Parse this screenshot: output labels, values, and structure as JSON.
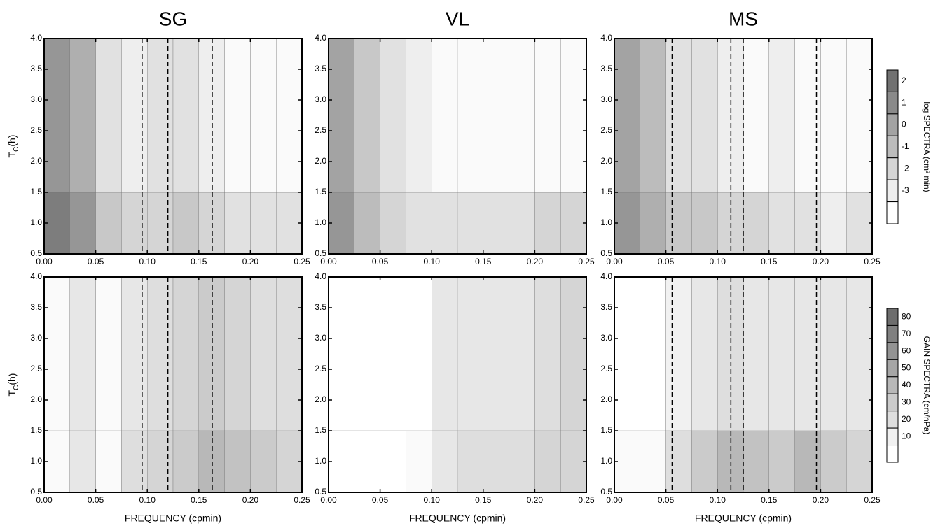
{
  "chart_data": [
    {
      "type": "contour",
      "title": "SG",
      "xlim": [
        0,
        0.25
      ],
      "ylim": [
        0.5,
        4
      ],
      "xticks": [
        {
          "value": 0,
          "label": "0.00"
        },
        {
          "value": 0.05,
          "label": "0.05"
        },
        {
          "value": 0.1,
          "label": "0.10"
        },
        {
          "value": 0.15,
          "label": "0.15"
        },
        {
          "value": 0.2,
          "label": "0.20"
        },
        {
          "value": 0.25,
          "label": "0.25"
        }
      ],
      "yticks": [
        0.5,
        {
          "value": 1,
          "label": "1.0"
        },
        1.5,
        {
          "value": 2,
          "label": "2.0"
        },
        2.5,
        {
          "value": 3,
          "label": "3.0"
        },
        3.5,
        {
          "value": 4,
          "label": "4.0"
        }
      ],
      "ylabel": {
        "text": "T",
        "sub": "C",
        "suffix": "(h)"
      },
      "dashed_lines": [
        0.095,
        0.12,
        0.163
      ],
      "x_bins": [
        0,
        0.025,
        0.05,
        0.075,
        0.1,
        0.125,
        0.15,
        0.175,
        0.2,
        0.225,
        0.25
      ],
      "y_bins": [
        0.5,
        1.5,
        4
      ],
      "values": [
        [
          1.5,
          0.5,
          -1.5,
          -2,
          -2,
          -1.5,
          -2,
          -2.5,
          -2.5,
          -2.5
        ],
        [
          0.5,
          -0.5,
          -2.5,
          -3,
          -2.5,
          -2.5,
          -3,
          -3.5,
          -3.5,
          -3.5
        ]
      ],
      "vlim": [
        -3.5,
        2.5
      ]
    },
    {
      "type": "contour",
      "title": "VL",
      "xlim": [
        0,
        0.25
      ],
      "ylim": [
        0.5,
        4
      ],
      "xticks": [
        {
          "value": 0,
          "label": "0.00"
        },
        {
          "value": 0.05,
          "label": "0.05"
        },
        {
          "value": 0.1,
          "label": "0.10"
        },
        {
          "value": 0.15,
          "label": "0.15"
        },
        {
          "value": 0.2,
          "label": "0.20"
        },
        {
          "value": 0.25,
          "label": "0.25"
        }
      ],
      "yticks": [
        0.5,
        {
          "value": 1,
          "label": "1.0"
        },
        1.5,
        {
          "value": 2,
          "label": "2.0"
        },
        2.5,
        {
          "value": 3,
          "label": "3.0"
        },
        3.5,
        {
          "value": 4,
          "label": "4.0"
        }
      ],
      "x_bins": [
        0,
        0.025,
        0.05,
        0.075,
        0.1,
        0.125,
        0.15,
        0.175,
        0.2,
        0.225,
        0.25
      ],
      "y_bins": [
        0.5,
        1.5,
        4
      ],
      "values": [
        [
          0.5,
          -1,
          -2,
          -2.5,
          -2.5,
          -2.5,
          -2.5,
          -2.5,
          -2,
          -2
        ],
        [
          0,
          -1.5,
          -2.5,
          -3,
          -3.5,
          -3.5,
          -3.5,
          -3.5,
          -3.5,
          -3.5
        ]
      ],
      "vlim": [
        -3.5,
        2.5
      ]
    },
    {
      "type": "contour",
      "title": "MS",
      "xlim": [
        0,
        0.25
      ],
      "ylim": [
        0.5,
        4
      ],
      "xticks": [
        {
          "value": 0,
          "label": "0.00"
        },
        {
          "value": 0.05,
          "label": "0.05"
        },
        {
          "value": 0.1,
          "label": "0.10"
        },
        {
          "value": 0.15,
          "label": "0.15"
        },
        {
          "value": 0.2,
          "label": "0.20"
        },
        {
          "value": 0.25,
          "label": "0.25"
        }
      ],
      "yticks": [
        0.5,
        {
          "value": 1,
          "label": "1.0"
        },
        1.5,
        {
          "value": 2,
          "label": "2.0"
        },
        2.5,
        {
          "value": 3,
          "label": "3.0"
        },
        3.5,
        {
          "value": 4,
          "label": "4.0"
        }
      ],
      "dashed_lines": [
        0.056,
        0.113,
        0.125,
        0.196
      ],
      "x_bins": [
        0,
        0.025,
        0.05,
        0.075,
        0.1,
        0.125,
        0.15,
        0.175,
        0.2,
        0.225,
        0.25
      ],
      "y_bins": [
        0.5,
        1.5,
        4
      ],
      "values": [
        [
          0.5,
          -0.5,
          -1.5,
          -1.5,
          -2,
          -2,
          -2.5,
          -2.5,
          -3,
          -2.5
        ],
        [
          0,
          -1,
          -2.5,
          -2.5,
          -3,
          -3.5,
          -3,
          -3.5,
          -3.5,
          -3.5
        ]
      ],
      "vlim": [
        -3.5,
        2.5
      ],
      "colorbar": {
        "label": "log SPECTRA (cm² min)",
        "levels": [
          2,
          1,
          0,
          -1,
          -2,
          -3
        ]
      }
    },
    {
      "type": "contour",
      "xlim": [
        0,
        0.25
      ],
      "ylim": [
        0.5,
        4
      ],
      "xticks": [
        {
          "value": 0,
          "label": "0.00"
        },
        {
          "value": 0.05,
          "label": "0.05"
        },
        {
          "value": 0.1,
          "label": "0.10"
        },
        {
          "value": 0.15,
          "label": "0.15"
        },
        {
          "value": 0.2,
          "label": "0.20"
        },
        {
          "value": 0.25,
          "label": "0.25"
        }
      ],
      "yticks": [
        0.5,
        {
          "value": 1,
          "label": "1.0"
        },
        1.5,
        {
          "value": 2,
          "label": "2.0"
        },
        2.5,
        {
          "value": 3,
          "label": "3.0"
        },
        3.5,
        {
          "value": 4,
          "label": "4.0"
        }
      ],
      "xlabel": "FREQUENCY (cpmin)",
      "ylabel": {
        "text": "T",
        "sub": "C",
        "suffix": "(h)"
      },
      "dashed_lines": [
        0.095,
        0.12,
        0.163
      ],
      "x_bins": [
        0,
        0.025,
        0.05,
        0.075,
        0.1,
        0.125,
        0.15,
        0.175,
        0.2,
        0.225,
        0.25
      ],
      "y_bins": [
        0.5,
        1.5,
        4
      ],
      "values": [
        [
          5,
          15,
          5,
          20,
          25,
          30,
          40,
          35,
          30,
          25
        ],
        [
          5,
          15,
          5,
          15,
          20,
          25,
          30,
          25,
          20,
          20
        ]
      ],
      "vlim": [
        5,
        85
      ]
    },
    {
      "type": "contour",
      "xlim": [
        0,
        0.25
      ],
      "ylim": [
        0.5,
        4
      ],
      "xticks": [
        {
          "value": 0,
          "label": "0.00"
        },
        {
          "value": 0.05,
          "label": "0.05"
        },
        {
          "value": 0.1,
          "label": "0.10"
        },
        {
          "value": 0.15,
          "label": "0.15"
        },
        {
          "value": 0.2,
          "label": "0.20"
        },
        {
          "value": 0.25,
          "label": "0.25"
        }
      ],
      "yticks": [
        0.5,
        {
          "value": 1,
          "label": "1.0"
        },
        1.5,
        {
          "value": 2,
          "label": "2.0"
        },
        2.5,
        {
          "value": 3,
          "label": "3.0"
        },
        3.5,
        {
          "value": 4,
          "label": "4.0"
        }
      ],
      "xlabel": "FREQUENCY (cpmin)",
      "x_bins": [
        0,
        0.025,
        0.05,
        0.075,
        0.1,
        0.125,
        0.15,
        0.175,
        0.2,
        0.225,
        0.25
      ],
      "y_bins": [
        0.5,
        1.5,
        4
      ],
      "values": [
        [
          0,
          0,
          0,
          5,
          15,
          20,
          20,
          20,
          25,
          25
        ],
        [
          0,
          0,
          0,
          0,
          15,
          15,
          15,
          15,
          20,
          25
        ]
      ],
      "vlim": [
        5,
        85
      ]
    },
    {
      "type": "contour",
      "xlim": [
        0,
        0.25
      ],
      "ylim": [
        0.5,
        4
      ],
      "xticks": [
        {
          "value": 0,
          "label": "0.00"
        },
        {
          "value": 0.05,
          "label": "0.05"
        },
        {
          "value": 0.1,
          "label": "0.10"
        },
        {
          "value": 0.15,
          "label": "0.15"
        },
        {
          "value": 0.2,
          "label": "0.20"
        },
        {
          "value": 0.25,
          "label": "0.25"
        }
      ],
      "yticks": [
        0.5,
        {
          "value": 1,
          "label": "1.0"
        },
        1.5,
        {
          "value": 2,
          "label": "2.0"
        },
        2.5,
        {
          "value": 3,
          "label": "3.0"
        },
        3.5,
        {
          "value": 4,
          "label": "4.0"
        }
      ],
      "xlabel": "FREQUENCY (cpmin)",
      "dashed_lines": [
        0.056,
        0.113,
        0.125,
        0.196
      ],
      "x_bins": [
        0,
        0.025,
        0.05,
        0.075,
        0.1,
        0.125,
        0.15,
        0.175,
        0.2,
        0.225,
        0.25
      ],
      "y_bins": [
        0.5,
        1.5,
        4
      ],
      "values": [
        [
          5,
          5,
          20,
          30,
          40,
          35,
          30,
          40,
          30,
          25
        ],
        [
          0,
          0,
          10,
          15,
          20,
          15,
          15,
          15,
          15,
          15
        ]
      ],
      "vlim": [
        5,
        85
      ],
      "colorbar": {
        "label": "GAIN SPECTRA (cm/hPa)",
        "levels": [
          80,
          70,
          60,
          50,
          40,
          30,
          20,
          10
        ]
      }
    }
  ]
}
